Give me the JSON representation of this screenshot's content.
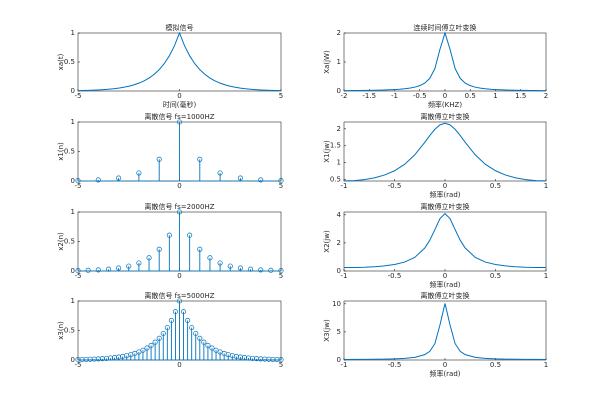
{
  "chart_data": [
    {
      "type": "line",
      "title": "模拟信号",
      "xlabel": "时间(毫秒)",
      "ylabel": "xa(t)",
      "color": "#0072bd",
      "x": [
        -5,
        -4.75,
        -4.5,
        -4.25,
        -4,
        -3.75,
        -3.5,
        -3.25,
        -3,
        -2.75,
        -2.5,
        -2.25,
        -2,
        -1.75,
        -1.5,
        -1.25,
        -1,
        -0.75,
        -0.5,
        -0.25,
        0,
        0.25,
        0.5,
        0.75,
        1,
        1.25,
        1.5,
        1.75,
        2,
        2.25,
        2.5,
        2.75,
        3,
        3.25,
        3.5,
        3.75,
        4,
        4.25,
        4.5,
        4.75,
        5
      ],
      "values": [
        0.0067,
        0.0087,
        0.0111,
        0.0143,
        0.0183,
        0.0235,
        0.0302,
        0.0388,
        0.0498,
        0.0639,
        0.0821,
        0.1054,
        0.1353,
        0.1738,
        0.2231,
        0.2865,
        0.3679,
        0.4724,
        0.6065,
        0.7788,
        1,
        0.7788,
        0.6065,
        0.4724,
        0.3679,
        0.2865,
        0.2231,
        0.1738,
        0.1353,
        0.1054,
        0.0821,
        0.0639,
        0.0498,
        0.0388,
        0.0302,
        0.0235,
        0.0183,
        0.0143,
        0.0111,
        0.0087,
        0.0067
      ],
      "xlim": [
        -5,
        5
      ],
      "ylim": [
        0,
        1
      ],
      "xticks": [
        -5,
        0,
        5
      ],
      "yticks": [
        0,
        0.5,
        1
      ]
    },
    {
      "type": "line",
      "title": "连续时间傅立叶变换",
      "xlabel": "频率(KHZ)",
      "ylabel": "Xa(jW)",
      "color": "#0072bd",
      "x": [
        -2,
        -1.9,
        -1.8,
        -1.7,
        -1.6,
        -1.5,
        -1.4,
        -1.3,
        -1.2,
        -1.1,
        -1,
        -0.9,
        -0.8,
        -0.7,
        -0.6,
        -0.5,
        -0.4,
        -0.3,
        -0.2,
        -0.1,
        0,
        0.1,
        0.2,
        0.3,
        0.4,
        0.5,
        0.6,
        0.7,
        0.8,
        0.9,
        1,
        1.1,
        1.2,
        1.3,
        1.4,
        1.5,
        1.6,
        1.7,
        1.8,
        1.9,
        2
      ],
      "values": [
        0.0126,
        0.0139,
        0.0155,
        0.0174,
        0.0196,
        0.0223,
        0.0255,
        0.0295,
        0.0346,
        0.041,
        0.0494,
        0.0606,
        0.0762,
        0.0983,
        0.1315,
        0.184,
        0.2733,
        0.4393,
        0.7755,
        1.434,
        2,
        1.434,
        0.7755,
        0.4393,
        0.2733,
        0.184,
        0.1315,
        0.0983,
        0.0762,
        0.0606,
        0.0494,
        0.041,
        0.0346,
        0.0295,
        0.0255,
        0.0223,
        0.0196,
        0.0174,
        0.0155,
        0.0139,
        0.0126
      ],
      "xlim": [
        -2,
        2
      ],
      "ylim": [
        0,
        2
      ],
      "xticks": [
        -2,
        -1.5,
        -1,
        -0.5,
        0,
        0.5,
        1,
        1.5,
        2
      ],
      "yticks": [
        0,
        1,
        2
      ]
    },
    {
      "type": "stem",
      "title": "离散信号 fs=1000HZ",
      "ylabel": "x1(n)",
      "color": "#0072bd",
      "x": [
        -5,
        -4,
        -3,
        -2,
        -1,
        0,
        1,
        2,
        3,
        4,
        5
      ],
      "values": [
        0.0067,
        0.0183,
        0.0498,
        0.1353,
        0.3679,
        1,
        0.3679,
        0.1353,
        0.0498,
        0.0183,
        0.0067
      ],
      "xlim": [
        -5,
        5
      ],
      "ylim": [
        0,
        1
      ],
      "xticks": [
        -5,
        0,
        5
      ],
      "yticks": [
        0,
        0.5,
        1
      ]
    },
    {
      "type": "line",
      "title": "离散傅立叶变换",
      "xlabel": "频率(rad)",
      "ylabel": "X1(jw)",
      "color": "#0072bd",
      "x": [
        -1,
        -0.9,
        -0.8,
        -0.7,
        -0.6,
        -0.5,
        -0.4,
        -0.3,
        -0.2,
        -0.15,
        -0.1,
        -0.05,
        0,
        0.05,
        0.1,
        0.15,
        0.2,
        0.3,
        0.4,
        0.5,
        0.6,
        0.7,
        0.8,
        0.9,
        1
      ],
      "values": [
        0.462,
        0.471,
        0.5,
        0.552,
        0.635,
        0.762,
        0.952,
        1.23,
        1.601,
        1.803,
        1.986,
        2.116,
        2.164,
        2.116,
        1.986,
        1.803,
        1.601,
        1.23,
        0.952,
        0.762,
        0.635,
        0.552,
        0.5,
        0.471,
        0.462
      ],
      "xlim": [
        -1,
        1
      ],
      "ylim": [
        0.46,
        2.2
      ],
      "xticks": [
        -1,
        -0.5,
        0,
        0.5,
        1
      ],
      "yticks": [
        0.5,
        1,
        1.5,
        2
      ]
    },
    {
      "type": "stem",
      "title": "离散信号 fs=2000HZ",
      "ylabel": "x2(n)",
      "color": "#0072bd",
      "x": [
        -5,
        -4.5,
        -4,
        -3.5,
        -3,
        -2.5,
        -2,
        -1.5,
        -1,
        -0.5,
        0,
        0.5,
        1,
        1.5,
        2,
        2.5,
        3,
        3.5,
        4,
        4.5,
        5
      ],
      "values": [
        0.0067,
        0.0111,
        0.0183,
        0.0302,
        0.0498,
        0.0821,
        0.1353,
        0.2231,
        0.3679,
        0.6065,
        1,
        0.6065,
        0.3679,
        0.2231,
        0.1353,
        0.0821,
        0.0498,
        0.0302,
        0.0183,
        0.0111,
        0.0067
      ],
      "xlim": [
        -5,
        5
      ],
      "ylim": [
        0,
        1
      ],
      "xticks": [
        -5,
        0,
        5
      ],
      "yticks": [
        0,
        0.5,
        1
      ]
    },
    {
      "type": "line",
      "title": "离散傅立叶变换",
      "xlabel": "频率(rad)",
      "ylabel": "X2(jw)",
      "color": "#0072bd",
      "x": [
        -1,
        -0.9,
        -0.8,
        -0.7,
        -0.6,
        -0.5,
        -0.4,
        -0.3,
        -0.2,
        -0.15,
        -0.1,
        -0.05,
        0,
        0.05,
        0.1,
        0.15,
        0.2,
        0.3,
        0.4,
        0.5,
        0.6,
        0.7,
        0.8,
        0.9,
        1
      ],
      "values": [
        0.245,
        0.251,
        0.269,
        0.304,
        0.363,
        0.462,
        0.637,
        0.965,
        1.635,
        2.202,
        2.952,
        3.725,
        4.083,
        3.725,
        2.952,
        2.202,
        1.635,
        0.965,
        0.637,
        0.462,
        0.363,
        0.304,
        0.269,
        0.251,
        0.245
      ],
      "xlim": [
        -1,
        1
      ],
      "ylim": [
        0,
        4.2
      ],
      "xticks": [
        -1,
        -0.5,
        0,
        0.5,
        1
      ],
      "yticks": [
        0,
        2,
        4
      ]
    },
    {
      "type": "stem",
      "title": "离散信号 fs=5000HZ",
      "ylabel": "x3(n)",
      "color": "#0072bd",
      "x": [
        -5,
        -4.8,
        -4.6,
        -4.4,
        -4.2,
        -4,
        -3.8,
        -3.6,
        -3.4,
        -3.2,
        -3,
        -2.8,
        -2.6,
        -2.4,
        -2.2,
        -2,
        -1.8,
        -1.6,
        -1.4,
        -1.2,
        -1,
        -0.8,
        -0.6,
        -0.4,
        -0.2,
        0,
        0.2,
        0.4,
        0.6,
        0.8,
        1,
        1.2,
        1.4,
        1.6,
        1.8,
        2,
        2.2,
        2.4,
        2.6,
        2.8,
        3,
        3.2,
        3.4,
        3.6,
        3.8,
        4,
        4.2,
        4.4,
        4.6,
        4.8,
        5
      ],
      "values": [
        0.0067,
        0.0082,
        0.0101,
        0.0123,
        0.015,
        0.0183,
        0.0224,
        0.0273,
        0.0334,
        0.0408,
        0.0498,
        0.0608,
        0.0743,
        0.0907,
        0.1108,
        0.1353,
        0.1653,
        0.2019,
        0.2466,
        0.3012,
        0.3679,
        0.4493,
        0.5488,
        0.6703,
        0.8187,
        1,
        0.8187,
        0.6703,
        0.5488,
        0.4493,
        0.3679,
        0.3012,
        0.2466,
        0.2019,
        0.1653,
        0.1353,
        0.1108,
        0.0907,
        0.0743,
        0.0608,
        0.0498,
        0.0408,
        0.0334,
        0.0273,
        0.0224,
        0.0183,
        0.015,
        0.0123,
        0.0101,
        0.0082,
        0.0067
      ],
      "xlim": [
        -5,
        5
      ],
      "ylim": [
        0,
        1
      ],
      "xticks": [
        -5,
        0,
        5
      ],
      "yticks": [
        0,
        0.5,
        1
      ]
    },
    {
      "type": "line",
      "title": "离散傅立叶变换",
      "xlabel": "频率(rad)",
      "ylabel": "X3(jw)",
      "color": "#0072bd",
      "x": [
        -1,
        -0.9,
        -0.8,
        -0.7,
        -0.6,
        -0.5,
        -0.4,
        -0.3,
        -0.2,
        -0.15,
        -0.1,
        -0.05,
        0,
        0.05,
        0.1,
        0.15,
        0.2,
        0.3,
        0.4,
        0.5,
        0.6,
        0.7,
        0.8,
        0.9,
        1
      ],
      "values": [
        0.0997,
        0.102,
        0.11,
        0.125,
        0.151,
        0.197,
        0.283,
        0.466,
        0.954,
        1.56,
        2.92,
        6.233,
        10.05,
        6.233,
        2.92,
        1.56,
        0.954,
        0.466,
        0.283,
        0.197,
        0.151,
        0.125,
        0.11,
        0.102,
        0.0997
      ],
      "xlim": [
        -1,
        1
      ],
      "ylim": [
        0,
        10.5
      ],
      "xticks": [
        -1,
        -0.5,
        0,
        0.5,
        1
      ],
      "yticks": [
        0,
        5,
        10
      ]
    }
  ]
}
